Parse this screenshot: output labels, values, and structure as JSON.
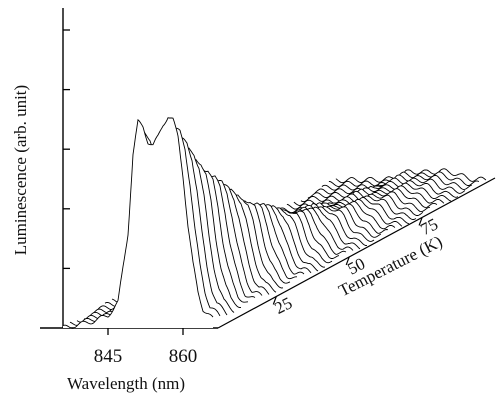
{
  "chart_data": {
    "type": "waterfall-line",
    "x_axis": {
      "label": "Wavelength (nm)",
      "ticks": [
        845,
        860
      ],
      "range": [
        836,
        866
      ]
    },
    "y_axis": {
      "label": "Luminescence (arb. unit)",
      "tick_count": 5,
      "units": "arbitrary"
    },
    "z_axis": {
      "label": "Temperature (K)",
      "ticks": [
        25,
        50,
        75
      ],
      "range": [
        5,
        100
      ]
    },
    "series_count": 40,
    "series_temperature_start": 5,
    "series_temperature_step": 2.4,
    "front_spectrum": {
      "wavelength_nm": [
        836,
        840,
        843,
        845,
        847,
        849,
        850,
        851,
        852,
        853,
        854,
        855,
        856,
        857,
        858,
        859,
        860,
        861,
        862,
        863,
        864,
        866
      ],
      "intensity": [
        0.0,
        0.02,
        0.04,
        0.06,
        0.12,
        0.45,
        0.82,
        0.97,
        0.95,
        0.88,
        0.86,
        0.9,
        0.96,
        1.0,
        0.98,
        0.9,
        0.72,
        0.48,
        0.3,
        0.17,
        0.09,
        0.04
      ]
    },
    "peak_wavelengths_nm": [
      851,
      857
    ],
    "grid": false
  }
}
